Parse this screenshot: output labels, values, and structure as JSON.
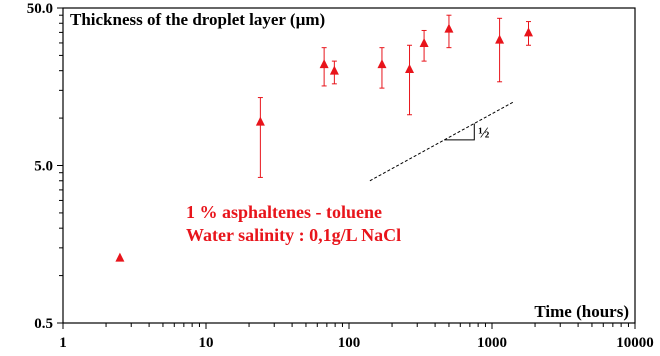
{
  "chart_data": {
    "type": "scatter",
    "title": "Thickness of the droplet layer (µm)",
    "xlabel": "Time (hours)",
    "ylabel": "",
    "xscale": "log",
    "yscale": "log",
    "xlim": [
      1,
      10000
    ],
    "ylim": [
      0.5,
      50
    ],
    "x_ticks": [
      "1",
      "10",
      "100",
      "1000",
      "10000"
    ],
    "y_ticks": [
      "0.5",
      "5.0",
      "50.0"
    ],
    "grid": false,
    "marker_color": "#e8141b",
    "annotation_color": "#e8141b",
    "annotation_lines": [
      "1 % asphaltenes - toluene",
      "Water salinity : 0,1g/L NaCl"
    ],
    "slope_label": "½",
    "slope_line": {
      "x": [
        140,
        1400
      ],
      "y": [
        4.0,
        12.6
      ]
    },
    "points": [
      {
        "x": 2.5,
        "y": 1.3,
        "err_low": 1.3,
        "err_high": 1.3
      },
      {
        "x": 24,
        "y": 9.5,
        "err_low": 4.2,
        "err_high": 13.5
      },
      {
        "x": 67,
        "y": 22,
        "err_low": 16,
        "err_high": 28
      },
      {
        "x": 79,
        "y": 20,
        "err_low": 16.5,
        "err_high": 23
      },
      {
        "x": 170,
        "y": 22,
        "err_low": 15.5,
        "err_high": 28
      },
      {
        "x": 265,
        "y": 20.5,
        "err_low": 10.5,
        "err_high": 29
      },
      {
        "x": 335,
        "y": 30,
        "err_low": 23,
        "err_high": 36
      },
      {
        "x": 500,
        "y": 37,
        "err_low": 28,
        "err_high": 45
      },
      {
        "x": 1130,
        "y": 31.5,
        "err_low": 17,
        "err_high": 43
      },
      {
        "x": 1800,
        "y": 35,
        "err_low": 29,
        "err_high": 41
      }
    ]
  }
}
